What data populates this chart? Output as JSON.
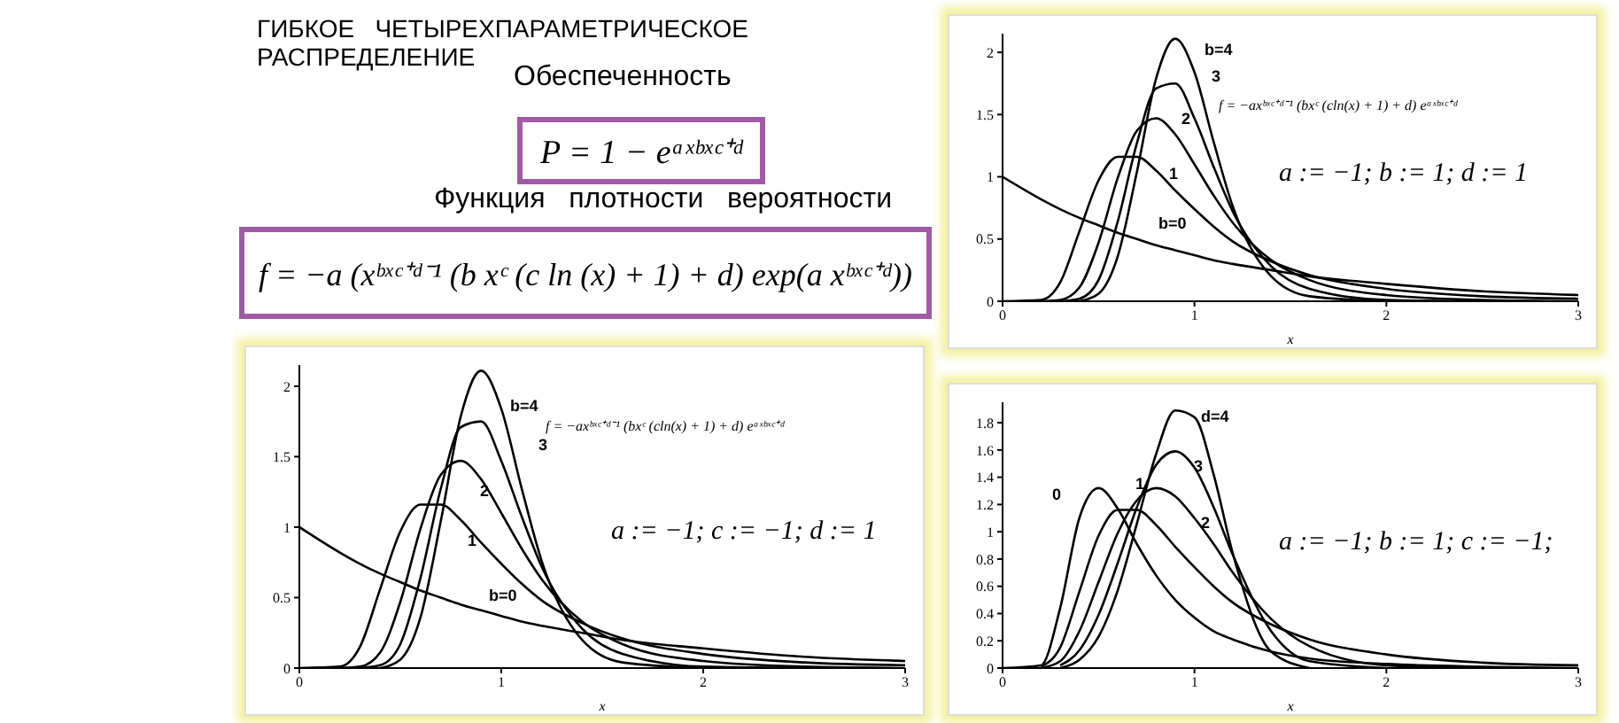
{
  "chart_data": [
    {
      "type": "line",
      "title": "ГИБКОЕ   ЧЕТЫРЕХПАРАМЕТРИЧЕСКОЕ РАСПРЕДЕЛЕНИЕ",
      "xlabel": "x",
      "xlim": [
        0,
        3
      ],
      "xticks": [
        0,
        1,
        2,
        3
      ],
      "ylim": [
        0,
        2.15
      ],
      "yticks": [
        0,
        0.5,
        1,
        1.5,
        2
      ],
      "series": [
        {
          "color": "#000000",
          "x": [
            0,
            0.2,
            0.3,
            0.4,
            0.5,
            0.6,
            0.7,
            0.8,
            0.9,
            1.0,
            1.1,
            1.2,
            1.4,
            1.6,
            2.0,
            2.5,
            3.0
          ],
          "values": [
            1,
            0.82,
            0.74,
            0.67,
            0.61,
            0.55,
            0.5,
            0.45,
            0.41,
            0.37,
            0.33,
            0.3,
            0.25,
            0.2,
            0.14,
            0.08,
            0.05
          ]
        },
        {
          "color": "#000000",
          "x": [
            0,
            0.2,
            0.3,
            0.4,
            0.5,
            0.6,
            0.7,
            0.8,
            0.9,
            1.0,
            1.1,
            1.2,
            1.4,
            1.6,
            2.0,
            2.5,
            3.0
          ],
          "values": [
            0,
            0.01,
            0.15,
            0.56,
            0.97,
            1.16,
            1.16,
            1.05,
            0.89,
            0.74,
            0.6,
            0.48,
            0.32,
            0.21,
            0.1,
            0.04,
            0.02
          ]
        },
        {
          "color": "#000000",
          "x": [
            0.2,
            0.3,
            0.4,
            0.5,
            0.6,
            0.7,
            0.8,
            0.9,
            1.0,
            1.1,
            1.2,
            1.4,
            1.6,
            2.0,
            2.5,
            3.0
          ],
          "values": [
            0,
            0.01,
            0.11,
            0.47,
            0.99,
            1.37,
            1.47,
            1.34,
            1.1,
            0.85,
            0.63,
            0.33,
            0.17,
            0.05,
            0.01,
            0
          ]
        },
        {
          "color": "#000000",
          "x": [
            0.3,
            0.4,
            0.5,
            0.6,
            0.7,
            0.8,
            0.9,
            1.0,
            1.1,
            1.2,
            1.4,
            1.6,
            2.0,
            2.5
          ],
          "values": [
            0,
            0.02,
            0.17,
            0.64,
            1.27,
            1.71,
            1.75,
            1.47,
            1.08,
            0.72,
            0.28,
            0.1,
            0.01,
            0
          ]
        },
        {
          "color": "#000000",
          "x": [
            0.4,
            0.5,
            0.6,
            0.7,
            0.8,
            0.9,
            1.0,
            1.1,
            1.2,
            1.4,
            1.6,
            2.0
          ],
          "values": [
            0,
            0.06,
            0.36,
            1.04,
            1.79,
            2.11,
            1.84,
            1.28,
            0.76,
            0.2,
            0.04,
            0
          ]
        }
      ],
      "annotations": [
        "Обеспеченность",
        "P = 1 − eᵃˣᵇˣᶜ⁺ᵈ",
        "Функция   плотности   вероятности",
        "f = −a (xᵇˣᶜ⁺ᵈ⁻¹ (b xᶜ (c ln (x) + 1) + d) exp(a xᵇˣᶜ⁺ᵈ))",
        "f = −axᵇˣᶜ⁺ᵈ⁻¹ (bxᶜ (cln(x) + 1) + d) eᵃˣᵇˣᶜ⁺ᵈ",
        "a := −1; c := −1; d := 1",
        "b=4",
        "3",
        "2",
        "1",
        "b=0"
      ]
    },
    {
      "type": "line",
      "xlabel": "x",
      "xlim": [
        0,
        3
      ],
      "xticks": [
        0,
        1,
        2,
        3
      ],
      "ylim": [
        0,
        2.15
      ],
      "yticks": [
        0,
        0.5,
        1,
        1.5,
        2
      ],
      "series": [
        {
          "color": "#000000",
          "x": [
            0,
            0.2,
            0.3,
            0.4,
            0.5,
            0.6,
            0.7,
            0.8,
            0.9,
            1.0,
            1.1,
            1.2,
            1.4,
            1.6,
            2.0,
            2.5,
            3.0
          ],
          "values": [
            1,
            0.82,
            0.74,
            0.67,
            0.61,
            0.55,
            0.5,
            0.45,
            0.41,
            0.37,
            0.33,
            0.3,
            0.25,
            0.2,
            0.14,
            0.08,
            0.05
          ]
        },
        {
          "color": "#000000",
          "x": [
            0,
            0.2,
            0.3,
            0.4,
            0.5,
            0.6,
            0.7,
            0.8,
            0.9,
            1.0,
            1.1,
            1.2,
            1.4,
            1.6,
            2.0,
            2.5,
            3.0
          ],
          "values": [
            0,
            0.01,
            0.15,
            0.56,
            0.97,
            1.16,
            1.16,
            1.05,
            0.89,
            0.74,
            0.6,
            0.48,
            0.32,
            0.21,
            0.1,
            0.04,
            0.02
          ]
        },
        {
          "color": "#000000",
          "x": [
            0.2,
            0.3,
            0.4,
            0.5,
            0.6,
            0.7,
            0.8,
            0.9,
            1.0,
            1.1,
            1.2,
            1.4,
            1.6,
            2.0,
            2.5,
            3.0
          ],
          "values": [
            0,
            0.01,
            0.11,
            0.47,
            0.99,
            1.37,
            1.47,
            1.34,
            1.1,
            0.85,
            0.63,
            0.33,
            0.17,
            0.05,
            0.01,
            0
          ]
        },
        {
          "color": "#000000",
          "x": [
            0.3,
            0.4,
            0.5,
            0.6,
            0.7,
            0.8,
            0.9,
            1.0,
            1.1,
            1.2,
            1.4,
            1.6,
            2.0,
            2.5
          ],
          "values": [
            0,
            0.02,
            0.17,
            0.64,
            1.27,
            1.71,
            1.75,
            1.47,
            1.08,
            0.72,
            0.28,
            0.1,
            0.01,
            0
          ]
        },
        {
          "color": "#000000",
          "x": [
            0.4,
            0.5,
            0.6,
            0.7,
            0.8,
            0.9,
            1.0,
            1.1,
            1.2,
            1.4,
            1.6,
            2.0
          ],
          "values": [
            0,
            0.06,
            0.36,
            1.04,
            1.79,
            2.11,
            1.84,
            1.28,
            0.76,
            0.2,
            0.04,
            0
          ]
        }
      ],
      "annotations": [
        "f = −axᵇˣᶜ⁺ᵈ⁻¹ (bxᶜ (cln(x) + 1) + d) eᵃˣᵇˣᶜ⁺ᵈ",
        "a := −1; b := 1; d := 1",
        "b=4",
        "3",
        "2",
        "1",
        "b=0"
      ]
    },
    {
      "type": "line",
      "xlabel": "x",
      "xlim": [
        0,
        3
      ],
      "xticks": [
        0,
        1,
        2,
        3
      ],
      "ylim": [
        0,
        1.95
      ],
      "yticks": [
        0,
        0.2,
        0.4,
        0.6,
        0.8,
        1,
        1.2,
        1.4,
        1.6,
        1.8
      ],
      "series": [
        {
          "color": "#000000",
          "x": [
            0,
            0.2,
            0.3,
            0.4,
            0.5,
            0.6,
            0.7,
            0.8,
            0.9,
            1.0,
            1.1,
            1.2,
            1.4,
            1.6,
            2.0,
            2.5,
            3.0
          ],
          "values": [
            0,
            0.02,
            0.44,
            1.1,
            1.32,
            1.17,
            0.91,
            0.68,
            0.5,
            0.37,
            0.27,
            0.21,
            0.12,
            0.07,
            0.03,
            0.01,
            0
          ]
        },
        {
          "color": "#000000",
          "x": [
            0.2,
            0.3,
            0.4,
            0.5,
            0.6,
            0.7,
            0.8,
            0.9,
            1.0,
            1.1,
            1.2,
            1.4,
            1.6,
            2.0,
            2.5,
            3.0
          ],
          "values": [
            0.01,
            0.15,
            0.56,
            0.97,
            1.16,
            1.16,
            1.05,
            0.89,
            0.74,
            0.6,
            0.48,
            0.32,
            0.21,
            0.1,
            0.04,
            0.02
          ]
        },
        {
          "color": "#000000",
          "x": [
            0.2,
            0.3,
            0.4,
            0.5,
            0.6,
            0.7,
            0.8,
            0.9,
            1.0,
            1.1,
            1.2,
            1.4,
            1.6,
            2.0,
            2.5
          ],
          "values": [
            0,
            0.05,
            0.27,
            0.63,
            0.99,
            1.23,
            1.32,
            1.26,
            1.1,
            0.91,
            0.7,
            0.36,
            0.16,
            0.02,
            0
          ]
        },
        {
          "color": "#000000",
          "x": [
            0.3,
            0.4,
            0.5,
            0.6,
            0.7,
            0.8,
            0.9,
            1.0,
            1.1,
            1.2,
            1.4,
            1.6,
            2.0
          ],
          "values": [
            0.02,
            0.13,
            0.39,
            0.77,
            1.18,
            1.49,
            1.59,
            1.47,
            1.18,
            0.83,
            0.27,
            0.05,
            0
          ]
        },
        {
          "color": "#000000",
          "x": [
            0.3,
            0.4,
            0.5,
            0.6,
            0.7,
            0.8,
            0.9,
            1.0,
            1.1,
            1.2,
            1.4,
            1.6
          ],
          "values": [
            0,
            0.06,
            0.23,
            0.57,
            1.06,
            1.57,
            1.89,
            1.84,
            1.42,
            0.84,
            0.12,
            0
          ]
        }
      ],
      "annotations": [
        "a := −1; b := 1; c := −1;",
        "d=4",
        "3",
        "2",
        "1",
        "0"
      ]
    }
  ]
}
